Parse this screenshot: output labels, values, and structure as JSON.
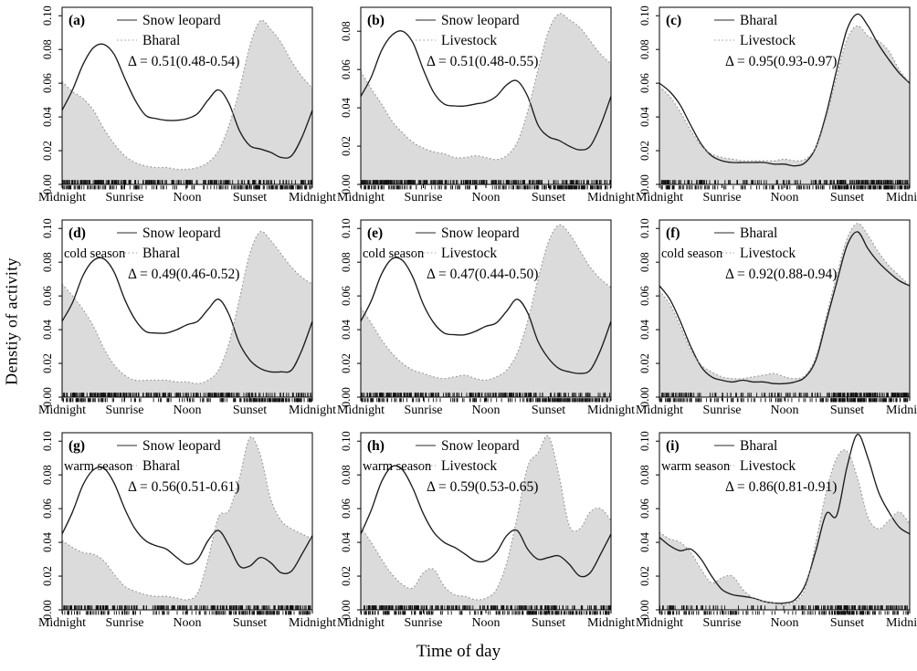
{
  "figure": {
    "ylabel": "Denstiy of activity",
    "xlabel": "Time of day",
    "x_tick_labels": [
      "Midnight",
      "Sunrise",
      "Noon",
      "Sunset",
      "Midnight"
    ],
    "colors": {
      "solid_line": "#1c1c1c",
      "dotted_line": "#969696",
      "area_fill": "#dbdbdb",
      "axis": "#000000",
      "background": "#ffffff"
    }
  },
  "chart_data": {
    "type": "area",
    "x_ticks_hours": [
      0,
      6,
      12,
      18,
      24
    ],
    "x_tick_labels": [
      "Midnight",
      "Sunrise",
      "Noon",
      "Sunset",
      "Midnight"
    ],
    "grid": false,
    "legend_position": "top-center-inside",
    "panels": [
      {
        "id": "a",
        "label": "(a)",
        "season": "",
        "delta": "Δ = 0.51(0.48-0.54)",
        "y_ticks": [
          0.0,
          0.02,
          0.04,
          0.06,
          0.08,
          0.1
        ],
        "ymax": 0.105,
        "series": [
          {
            "name": "Snow leopard",
            "style": "solid",
            "fill": false,
            "values": [
              0.044,
              0.056,
              0.071,
              0.081,
              0.083,
              0.077,
              0.063,
              0.05,
              0.041,
              0.039,
              0.038,
              0.038,
              0.039,
              0.042,
              0.05,
              0.056,
              0.048,
              0.032,
              0.023,
              0.021,
              0.019,
              0.016,
              0.017,
              0.028,
              0.044
            ]
          },
          {
            "name": "Bharal",
            "style": "dotted",
            "fill": true,
            "values": [
              0.061,
              0.055,
              0.051,
              0.044,
              0.033,
              0.024,
              0.017,
              0.013,
              0.011,
              0.01,
              0.01,
              0.009,
              0.009,
              0.01,
              0.013,
              0.02,
              0.035,
              0.056,
              0.082,
              0.097,
              0.092,
              0.084,
              0.073,
              0.064,
              0.057
            ]
          }
        ]
      },
      {
        "id": "b",
        "label": "(b)",
        "season": "",
        "delta": "Δ = 0.51(0.48-0.55)",
        "y_ticks": [
          0.0,
          0.02,
          0.04,
          0.06,
          0.08
        ],
        "ymax": 0.0925,
        "series": [
          {
            "name": "Snow leopard",
            "style": "solid",
            "fill": false,
            "values": [
              0.046,
              0.056,
              0.07,
              0.078,
              0.08,
              0.074,
              0.06,
              0.048,
              0.042,
              0.041,
              0.041,
              0.042,
              0.043,
              0.046,
              0.052,
              0.054,
              0.046,
              0.031,
              0.025,
              0.023,
              0.02,
              0.018,
              0.02,
              0.031,
              0.046
            ]
          },
          {
            "name": "Livestock",
            "style": "dotted",
            "fill": true,
            "values": [
              0.059,
              0.05,
              0.042,
              0.033,
              0.027,
              0.022,
              0.019,
              0.017,
              0.016,
              0.014,
              0.014,
              0.015,
              0.014,
              0.013,
              0.015,
              0.022,
              0.038,
              0.06,
              0.08,
              0.089,
              0.086,
              0.082,
              0.075,
              0.068,
              0.063
            ]
          }
        ]
      },
      {
        "id": "c",
        "label": "(c)",
        "season": "",
        "delta": "Δ = 0.95(0.93-0.97)",
        "y_ticks": [
          0.0,
          0.02,
          0.04,
          0.06,
          0.08,
          0.1
        ],
        "ymax": 0.105,
        "series": [
          {
            "name": "Bharal",
            "style": "solid",
            "fill": false,
            "values": [
              0.06,
              0.055,
              0.047,
              0.035,
              0.024,
              0.017,
              0.014,
              0.013,
              0.013,
              0.013,
              0.013,
              0.012,
              0.012,
              0.011,
              0.013,
              0.022,
              0.042,
              0.068,
              0.092,
              0.101,
              0.094,
              0.083,
              0.074,
              0.066,
              0.06
            ]
          },
          {
            "name": "Livestock",
            "style": "dotted",
            "fill": true,
            "values": [
              0.058,
              0.052,
              0.043,
              0.032,
              0.023,
              0.018,
              0.016,
              0.015,
              0.014,
              0.014,
              0.014,
              0.014,
              0.015,
              0.014,
              0.015,
              0.022,
              0.04,
              0.064,
              0.086,
              0.094,
              0.088,
              0.085,
              0.079,
              0.068,
              0.06
            ]
          }
        ]
      },
      {
        "id": "d",
        "label": "(d)",
        "season": "cold season",
        "delta": "Δ = 0.49(0.46-0.52)",
        "y_ticks": [
          0.0,
          0.02,
          0.04,
          0.06,
          0.08,
          0.1
        ],
        "ymax": 0.105,
        "series": [
          {
            "name": "Snow leopard",
            "style": "solid",
            "fill": false,
            "values": [
              0.045,
              0.056,
              0.072,
              0.081,
              0.082,
              0.074,
              0.058,
              0.046,
              0.039,
              0.038,
              0.038,
              0.04,
              0.043,
              0.045,
              0.052,
              0.058,
              0.049,
              0.032,
              0.022,
              0.017,
              0.015,
              0.015,
              0.016,
              0.028,
              0.045
            ]
          },
          {
            "name": "Bharal",
            "style": "dotted",
            "fill": true,
            "values": [
              0.067,
              0.06,
              0.052,
              0.042,
              0.029,
              0.019,
              0.013,
              0.01,
              0.01,
              0.01,
              0.01,
              0.009,
              0.009,
              0.008,
              0.01,
              0.016,
              0.032,
              0.058,
              0.085,
              0.098,
              0.093,
              0.085,
              0.077,
              0.071,
              0.067
            ]
          }
        ]
      },
      {
        "id": "e",
        "label": "(e)",
        "season": "cold season",
        "delta": "Δ = 0.47(0.44-0.50)",
        "y_ticks": [
          0.0,
          0.02,
          0.04,
          0.06,
          0.08,
          0.1
        ],
        "ymax": 0.105,
        "series": [
          {
            "name": "Snow leopard",
            "style": "solid",
            "fill": false,
            "values": [
              0.045,
              0.057,
              0.073,
              0.082,
              0.081,
              0.071,
              0.055,
              0.044,
              0.038,
              0.037,
              0.037,
              0.039,
              0.042,
              0.044,
              0.051,
              0.058,
              0.05,
              0.033,
              0.023,
              0.017,
              0.015,
              0.014,
              0.016,
              0.028,
              0.045
            ]
          },
          {
            "name": "Livestock",
            "style": "dotted",
            "fill": true,
            "values": [
              0.053,
              0.044,
              0.034,
              0.026,
              0.02,
              0.016,
              0.014,
              0.012,
              0.011,
              0.012,
              0.013,
              0.011,
              0.01,
              0.012,
              0.016,
              0.026,
              0.045,
              0.07,
              0.092,
              0.102,
              0.097,
              0.087,
              0.077,
              0.07,
              0.065
            ]
          }
        ]
      },
      {
        "id": "f",
        "label": "(f)",
        "season": "cold season",
        "delta": "Δ = 0.92(0.88-0.94)",
        "y_ticks": [
          0.0,
          0.02,
          0.04,
          0.06,
          0.08,
          0.1
        ],
        "ymax": 0.105,
        "series": [
          {
            "name": "Bharal",
            "style": "solid",
            "fill": false,
            "values": [
              0.066,
              0.058,
              0.045,
              0.03,
              0.018,
              0.012,
              0.01,
              0.009,
              0.01,
              0.009,
              0.009,
              0.008,
              0.008,
              0.009,
              0.012,
              0.022,
              0.045,
              0.068,
              0.09,
              0.098,
              0.088,
              0.08,
              0.074,
              0.069,
              0.066
            ]
          },
          {
            "name": "Livestock",
            "style": "dotted",
            "fill": true,
            "values": [
              0.063,
              0.055,
              0.042,
              0.028,
              0.019,
              0.015,
              0.012,
              0.011,
              0.011,
              0.012,
              0.013,
              0.014,
              0.012,
              0.011,
              0.013,
              0.024,
              0.048,
              0.072,
              0.094,
              0.103,
              0.096,
              0.086,
              0.078,
              0.072,
              0.066
            ]
          }
        ]
      },
      {
        "id": "g",
        "label": "(g)",
        "season": "warm season",
        "delta": "Δ = 0.56(0.51-0.61)",
        "y_ticks": [
          0.0,
          0.02,
          0.04,
          0.06,
          0.08,
          0.1
        ],
        "ymax": 0.105,
        "series": [
          {
            "name": "Snow leopard",
            "style": "solid",
            "fill": false,
            "values": [
              0.045,
              0.058,
              0.074,
              0.083,
              0.084,
              0.075,
              0.06,
              0.048,
              0.041,
              0.038,
              0.036,
              0.031,
              0.027,
              0.03,
              0.041,
              0.047,
              0.038,
              0.026,
              0.026,
              0.031,
              0.028,
              0.022,
              0.023,
              0.033,
              0.044
            ]
          },
          {
            "name": "Bharal",
            "style": "dotted",
            "fill": true,
            "values": [
              0.041,
              0.037,
              0.034,
              0.033,
              0.029,
              0.021,
              0.014,
              0.011,
              0.009,
              0.008,
              0.008,
              0.007,
              0.006,
              0.01,
              0.03,
              0.055,
              0.059,
              0.078,
              0.102,
              0.092,
              0.066,
              0.053,
              0.048,
              0.045,
              0.042
            ]
          }
        ]
      },
      {
        "id": "h",
        "label": "(h)",
        "season": "warm season",
        "delta": "Δ = 0.59(0.53-0.65)",
        "y_ticks": [
          0.0,
          0.02,
          0.04,
          0.06,
          0.08,
          0.1
        ],
        "ymax": 0.105,
        "series": [
          {
            "name": "Snow leopard",
            "style": "solid",
            "fill": false,
            "values": [
              0.045,
              0.059,
              0.076,
              0.085,
              0.083,
              0.072,
              0.057,
              0.046,
              0.04,
              0.037,
              0.033,
              0.029,
              0.029,
              0.034,
              0.044,
              0.047,
              0.036,
              0.03,
              0.031,
              0.032,
              0.027,
              0.02,
              0.022,
              0.033,
              0.045
            ]
          },
          {
            "name": "Livestock",
            "style": "dotted",
            "fill": true,
            "values": [
              0.049,
              0.04,
              0.03,
              0.021,
              0.015,
              0.013,
              0.022,
              0.024,
              0.014,
              0.009,
              0.008,
              0.006,
              0.007,
              0.012,
              0.028,
              0.055,
              0.085,
              0.093,
              0.103,
              0.08,
              0.05,
              0.048,
              0.058,
              0.06,
              0.053
            ]
          }
        ]
      },
      {
        "id": "i",
        "label": "(i)",
        "season": "warm season",
        "delta": "Δ = 0.86(0.81-0.91)",
        "y_ticks": [
          0.0,
          0.02,
          0.04,
          0.06,
          0.08,
          0.1
        ],
        "ymax": 0.105,
        "series": [
          {
            "name": "Bharal",
            "style": "solid",
            "fill": false,
            "values": [
              0.043,
              0.038,
              0.035,
              0.036,
              0.03,
              0.02,
              0.012,
              0.009,
              0.008,
              0.007,
              0.005,
              0.004,
              0.004,
              0.006,
              0.015,
              0.035,
              0.057,
              0.056,
              0.085,
              0.104,
              0.09,
              0.07,
              0.058,
              0.049,
              0.045
            ]
          },
          {
            "name": "Livestock",
            "style": "dotted",
            "fill": true,
            "values": [
              0.046,
              0.042,
              0.04,
              0.034,
              0.024,
              0.016,
              0.019,
              0.02,
              0.012,
              0.007,
              0.005,
              0.004,
              0.003,
              0.005,
              0.013,
              0.04,
              0.07,
              0.09,
              0.094,
              0.078,
              0.055,
              0.048,
              0.053,
              0.058,
              0.051
            ]
          }
        ]
      }
    ]
  }
}
